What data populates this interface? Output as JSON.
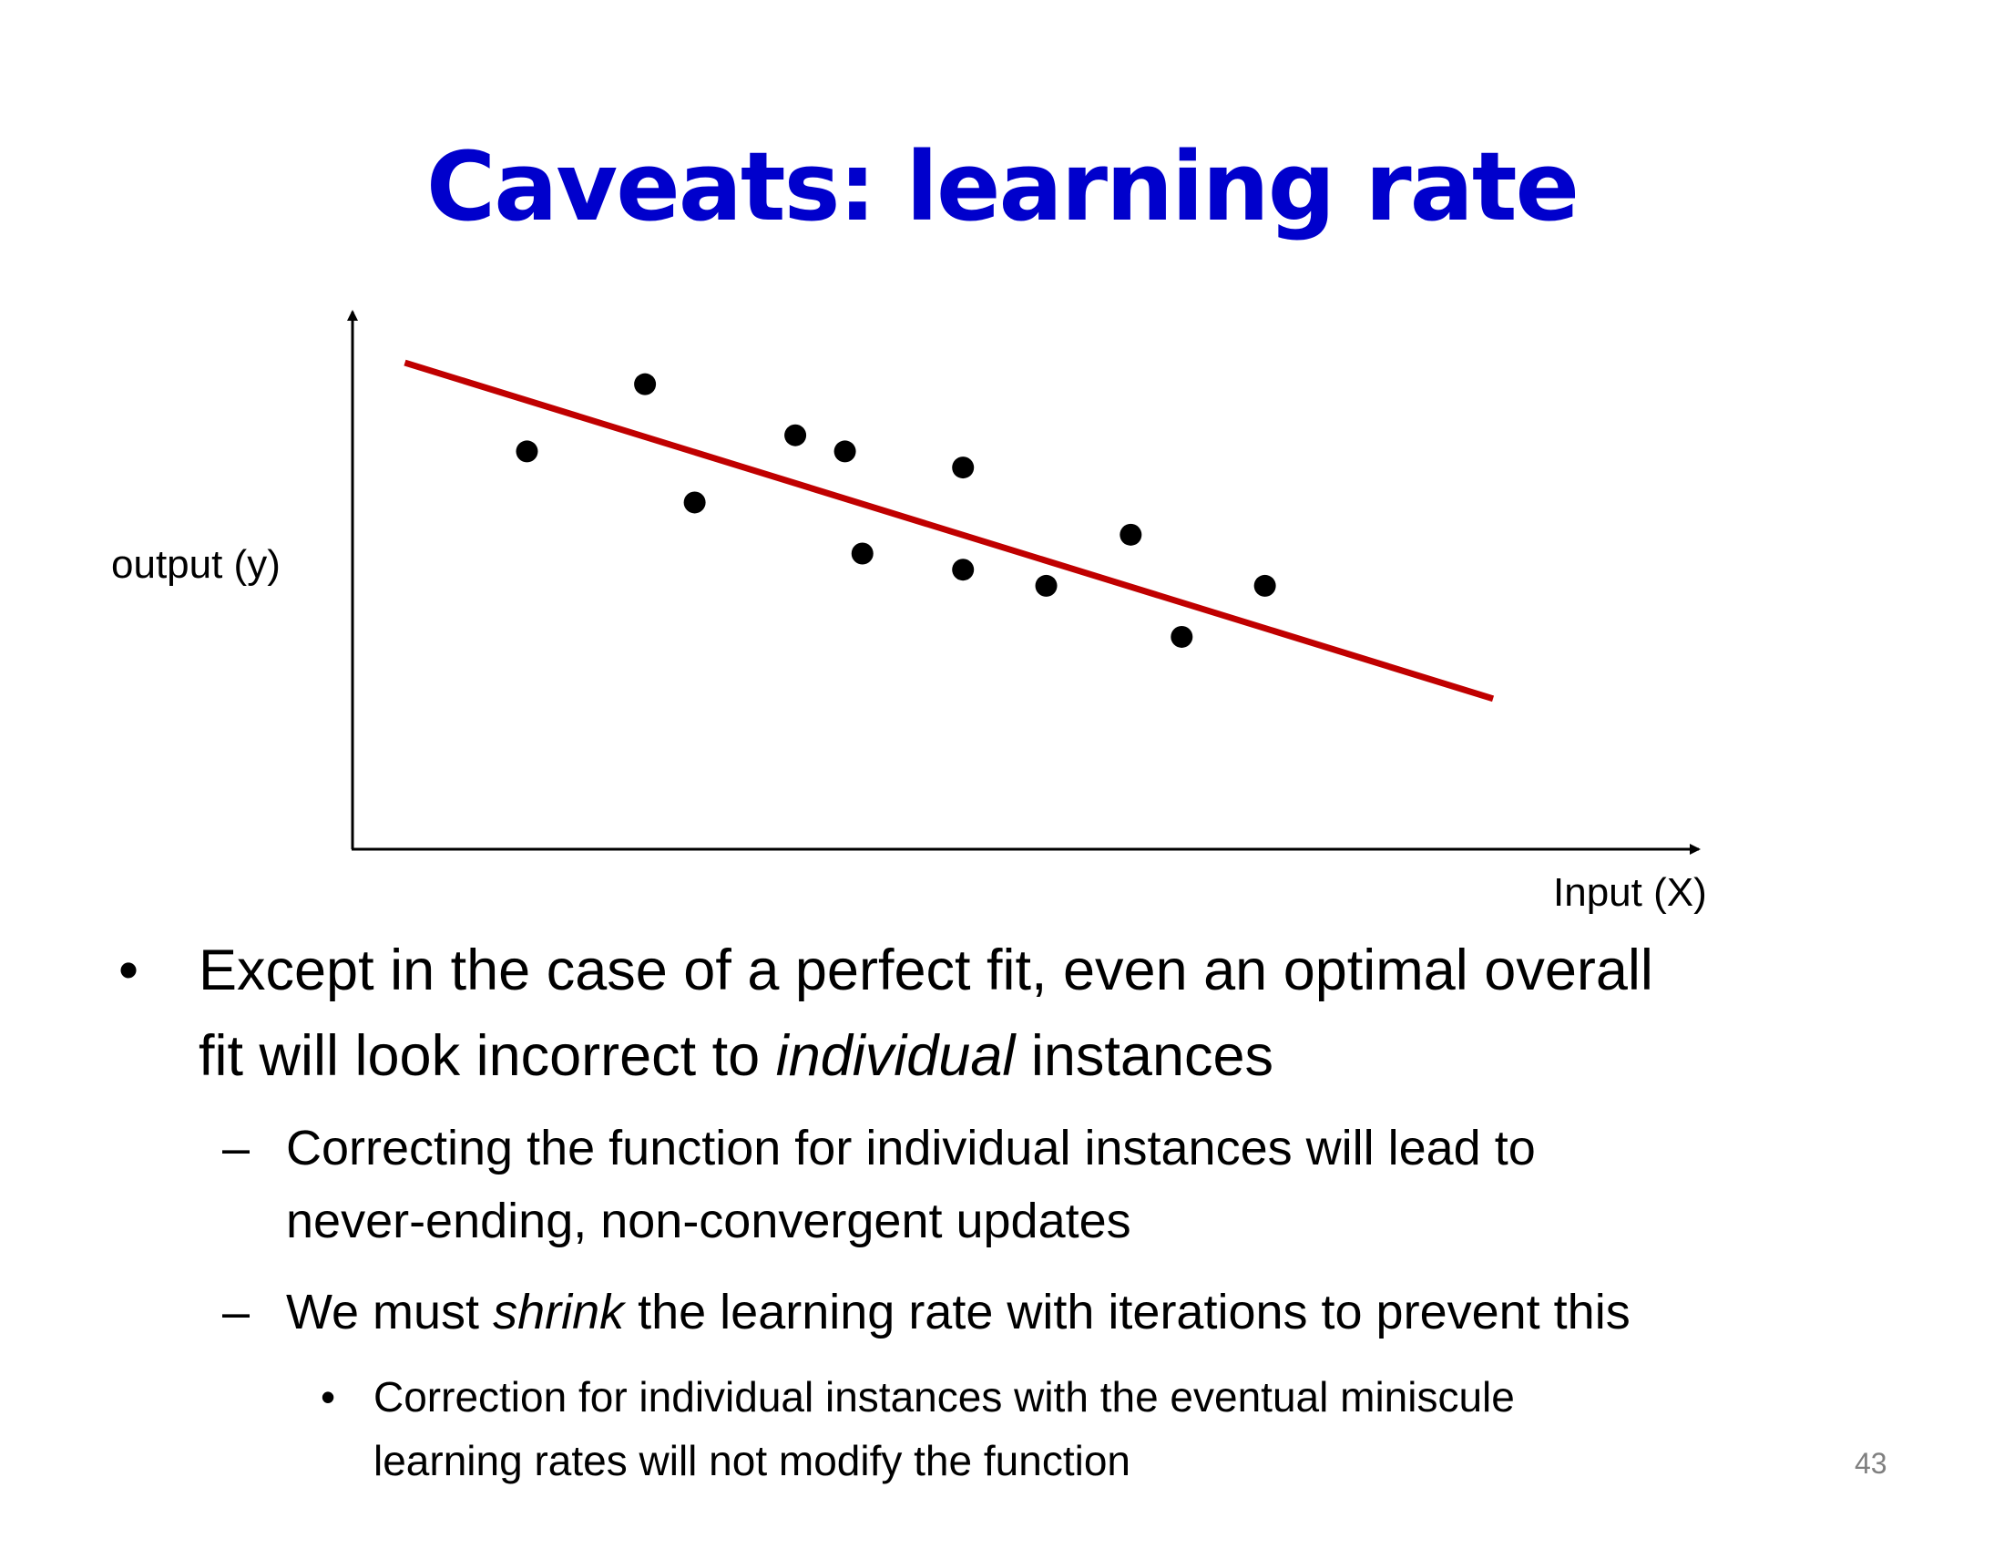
{
  "slide": {
    "title": "Caveats: learning rate",
    "title_color": "#0000CC",
    "page_number": "43"
  },
  "figure": {
    "y_label": "output (y)",
    "x_label": "Input (X)",
    "line_color": "#C00000",
    "point_color": "#000000",
    "x_range": [
      0,
      100
    ],
    "y_range": [
      0,
      100
    ],
    "points": [
      {
        "x": 13.0,
        "y": 74.0
      },
      {
        "x": 21.8,
        "y": 86.5
      },
      {
        "x": 25.5,
        "y": 64.5
      },
      {
        "x": 33.0,
        "y": 77.0
      },
      {
        "x": 36.7,
        "y": 74.0
      },
      {
        "x": 38.0,
        "y": 55.0
      },
      {
        "x": 45.5,
        "y": 71.0
      },
      {
        "x": 45.5,
        "y": 52.0
      },
      {
        "x": 51.7,
        "y": 49.0
      },
      {
        "x": 58.0,
        "y": 58.5
      },
      {
        "x": 61.8,
        "y": 39.5
      },
      {
        "x": 68.0,
        "y": 49.0
      }
    ],
    "fit_line": {
      "x1": 3.9,
      "y1": 90.5,
      "x2": 85.0,
      "y2": 28.0
    }
  },
  "bullets": {
    "b1_marker": "•",
    "b1_part1": "Except in the case of a perfect fit, even an optimal overall",
    "b1_part2": "fit will look incorrect to ",
    "b1_emph": "individual",
    "b1_part3": " instances",
    "sub_marker": "–",
    "s1_line1": "Correcting the function for individual instances will lead to",
    "s1_line2": "never-ending, non-convergent updates",
    "s2_part1": "We must ",
    "s2_emph": "shrink",
    "s2_part2": " the learning rate with iterations to prevent this",
    "subsub_marker": "•",
    "ss1_line1": "Correction for individual instances with the eventual miniscule",
    "ss1_line2": "learning rates will not modify the function"
  }
}
